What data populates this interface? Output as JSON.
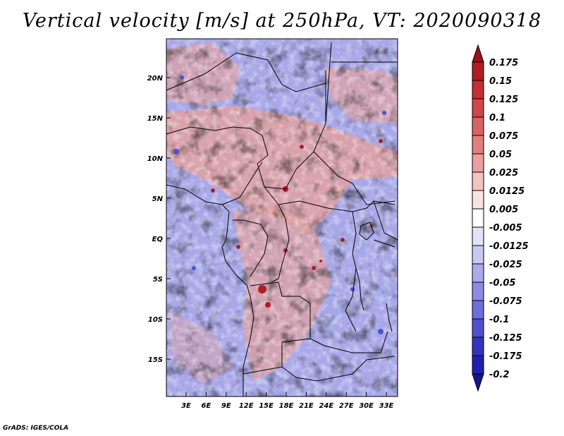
{
  "title": "Vertical velocity [m/s] at 250hPa, VT: 2020090318",
  "credit": "GrADS: IGES/COLA",
  "map": {
    "lat_labels": [
      "20N",
      "15N",
      "10N",
      "5N",
      "EQ",
      "5S",
      "10S",
      "15S"
    ],
    "lon_labels": [
      "3E",
      "6E",
      "9E",
      "12E",
      "15E",
      "18E",
      "21E",
      "24E",
      "27E",
      "30E",
      "33E"
    ],
    "field_colors": {
      "up": "#e0a0a0",
      "down": "#a8a8e8",
      "neutral": "#ffffff"
    }
  },
  "colorbar": {
    "labels": [
      "0.175",
      "0.15",
      "0.125",
      "0.1",
      "0.075",
      "0.05",
      "0.025",
      "0.0125",
      "0.005",
      "-0.005",
      "-0.0125",
      "-0.025",
      "-0.05",
      "-0.075",
      "-0.1",
      "-0.125",
      "-0.175",
      "-0.2"
    ],
    "colors": [
      "#9e1018",
      "#b01d24",
      "#c22f34",
      "#cf4748",
      "#da6261",
      "#e27f7d",
      "#eaa09e",
      "#f2c3c1",
      "#f9e3e2",
      "#ffffff",
      "#e3e3f8",
      "#c8c8f2",
      "#aaaaec",
      "#8c8ce4",
      "#6e6edb",
      "#5050cf",
      "#3333c0",
      "#1f1fae",
      "#141491"
    ]
  }
}
